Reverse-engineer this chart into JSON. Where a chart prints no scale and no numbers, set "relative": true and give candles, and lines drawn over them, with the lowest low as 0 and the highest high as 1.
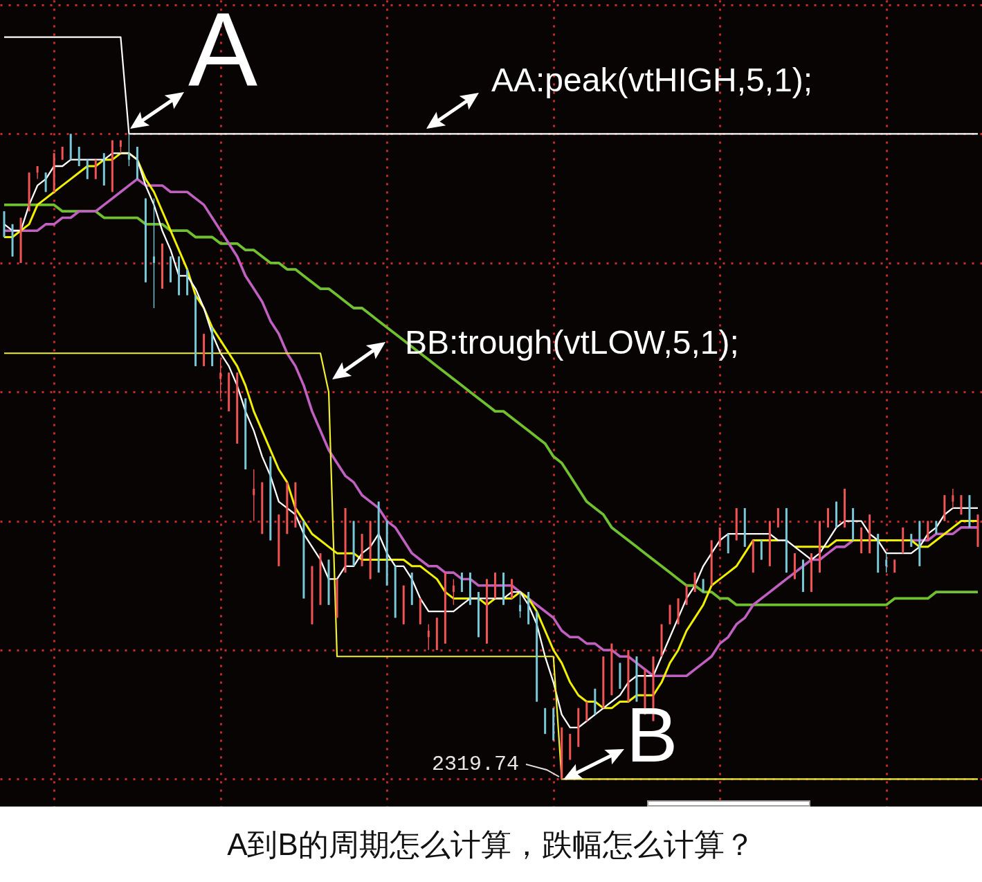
{
  "chart_data": {
    "type": "candlestick",
    "title": "A到B的周期怎么计算，跌幅怎么计算？",
    "relative": true,
    "grid": true,
    "annotations": [
      "A",
      "AA:peak(vtHIGH,5,1);",
      "BB:trough(vtLOW,5,1);",
      "B",
      "2319.74"
    ],
    "categories": [
      null,
      null,
      null,
      null,
      null,
      null,
      null,
      null,
      null,
      null,
      null,
      null,
      null,
      null,
      null,
      null,
      null,
      null,
      null,
      null,
      null,
      null,
      null,
      null,
      null,
      null,
      null,
      null,
      null,
      null,
      null,
      null,
      null,
      null,
      null,
      null,
      null,
      null,
      null,
      null,
      null,
      null,
      null,
      null,
      null,
      null,
      null,
      null,
      null,
      null,
      null,
      null,
      null,
      null,
      null,
      null,
      null,
      null,
      null,
      null,
      null,
      null,
      null,
      null,
      null,
      null,
      null,
      null,
      null,
      null,
      null,
      null,
      null,
      null,
      null,
      null,
      null,
      null,
      null,
      null,
      null,
      null,
      null,
      null,
      null,
      null,
      null,
      null,
      null,
      null,
      null,
      null,
      null,
      null,
      null,
      null,
      null,
      null,
      null,
      null,
      null,
      null,
      null,
      null,
      null,
      null,
      null,
      null,
      null,
      null,
      null,
      null,
      null,
      null,
      null,
      null,
      null,
      null
    ],
    "ohlc": [
      [
        0.88,
        0.88,
        0.84,
        0.84
      ],
      [
        0.86,
        0.86,
        0.81,
        0.81
      ],
      [
        0.8,
        0.87,
        0.8,
        0.87
      ],
      [
        0.88,
        0.94,
        0.88,
        0.94
      ],
      [
        0.94,
        0.95,
        0.93,
        0.95
      ],
      [
        0.94,
        0.94,
        0.91,
        0.91
      ],
      [
        0.91,
        0.97,
        0.91,
        0.97
      ],
      [
        0.96,
        0.98,
        0.96,
        0.98
      ],
      [
        1.0,
        1.0,
        0.96,
        0.96
      ],
      [
        0.98,
        0.98,
        0.95,
        0.95
      ],
      [
        0.96,
        0.96,
        0.93,
        0.93
      ],
      [
        0.93,
        0.96,
        0.93,
        0.96
      ],
      [
        0.97,
        0.97,
        0.92,
        0.92
      ],
      [
        0.91,
        0.99,
        0.91,
        0.99
      ],
      [
        0.98,
        0.99,
        0.97,
        0.99
      ],
      [
        0.97,
        1.0,
        0.95,
        0.96
      ],
      [
        0.98,
        0.98,
        0.93,
        0.93
      ],
      [
        0.9,
        0.9,
        0.77,
        0.77
      ],
      [
        0.81,
        0.9,
        0.73,
        0.8
      ],
      [
        0.76,
        0.83,
        0.76,
        0.83
      ],
      [
        0.81,
        0.81,
        0.77,
        0.77
      ],
      [
        0.81,
        0.81,
        0.75,
        0.75
      ],
      [
        0.79,
        0.79,
        0.75,
        0.75
      ],
      [
        0.75,
        0.75,
        0.64,
        0.64
      ],
      [
        0.64,
        0.69,
        0.64,
        0.69
      ],
      [
        0.7,
        0.7,
        0.64,
        0.64
      ],
      [
        0.62,
        0.65,
        0.59,
        0.63
      ],
      [
        0.57,
        0.63,
        0.57,
        0.63
      ],
      [
        0.52,
        0.63,
        0.52,
        0.63
      ],
      [
        0.59,
        0.59,
        0.48,
        0.48
      ],
      [
        0.44,
        0.48,
        0.4,
        0.45
      ],
      [
        0.38,
        0.46,
        0.38,
        0.46
      ],
      [
        0.5,
        0.5,
        0.37,
        0.37
      ],
      [
        0.33,
        0.41,
        0.33,
        0.41
      ],
      [
        0.38,
        0.46,
        0.38,
        0.46
      ],
      [
        0.39,
        0.46,
        0.39,
        0.46
      ],
      [
        0.4,
        0.4,
        0.28,
        0.28
      ],
      [
        0.24,
        0.33,
        0.24,
        0.33
      ],
      [
        0.27,
        0.35,
        0.27,
        0.35
      ],
      [
        0.34,
        0.34,
        0.27,
        0.27
      ],
      [
        0.25,
        0.31,
        0.25,
        0.31
      ],
      [
        0.32,
        0.42,
        0.32,
        0.42
      ],
      [
        0.4,
        0.4,
        0.33,
        0.33
      ],
      [
        0.33,
        0.38,
        0.33,
        0.38
      ],
      [
        0.31,
        0.4,
        0.31,
        0.4
      ],
      [
        0.43,
        0.43,
        0.32,
        0.32
      ],
      [
        0.4,
        0.4,
        0.3,
        0.3
      ],
      [
        0.33,
        0.33,
        0.25,
        0.25
      ],
      [
        0.24,
        0.3,
        0.24,
        0.3
      ],
      [
        0.32,
        0.32,
        0.27,
        0.27
      ],
      [
        0.24,
        0.28,
        0.24,
        0.28
      ],
      [
        0.22,
        0.24,
        0.2,
        0.23
      ],
      [
        0.2,
        0.25,
        0.2,
        0.25
      ],
      [
        0.21,
        0.32,
        0.21,
        0.32
      ],
      [
        0.29,
        0.31,
        0.27,
        0.3
      ],
      [
        0.32,
        0.32,
        0.29,
        0.29
      ],
      [
        0.32,
        0.32,
        0.27,
        0.27
      ],
      [
        0.29,
        0.29,
        0.22,
        0.22
      ],
      [
        0.21,
        0.31,
        0.21,
        0.31
      ],
      [
        0.28,
        0.32,
        0.28,
        0.32
      ],
      [
        0.32,
        0.32,
        0.27,
        0.27
      ],
      [
        0.28,
        0.31,
        0.28,
        0.31
      ],
      [
        0.27,
        0.29,
        0.25,
        0.26
      ],
      [
        0.29,
        0.29,
        0.24,
        0.24
      ],
      [
        0.26,
        0.26,
        0.12,
        0.12
      ],
      [
        0.11,
        0.11,
        0.07,
        0.07
      ],
      [
        0.11,
        0.11,
        0.06,
        0.06
      ],
      [
        0.0,
        0.08,
        0.0,
        0.08
      ],
      [
        0.03,
        0.07,
        0.03,
        0.07
      ],
      [
        0.05,
        0.11,
        0.05,
        0.11
      ],
      [
        0.09,
        0.12,
        0.09,
        0.12
      ],
      [
        0.14,
        0.14,
        0.1,
        0.1
      ],
      [
        0.11,
        0.19,
        0.11,
        0.19
      ],
      [
        0.13,
        0.21,
        0.13,
        0.21
      ],
      [
        0.18,
        0.18,
        0.14,
        0.14
      ],
      [
        0.12,
        0.2,
        0.12,
        0.2
      ],
      [
        0.19,
        0.19,
        0.12,
        0.12
      ],
      [
        0.1,
        0.17,
        0.1,
        0.17
      ],
      [
        0.09,
        0.19,
        0.09,
        0.19
      ],
      [
        0.19,
        0.24,
        0.19,
        0.24
      ],
      [
        0.24,
        0.27,
        0.24,
        0.27
      ],
      [
        0.24,
        0.28,
        0.24,
        0.28
      ],
      [
        0.27,
        0.3,
        0.27,
        0.3
      ],
      [
        0.29,
        0.32,
        0.29,
        0.32
      ],
      [
        0.31,
        0.31,
        0.29,
        0.29
      ],
      [
        0.3,
        0.37,
        0.3,
        0.37
      ],
      [
        0.36,
        0.39,
        0.36,
        0.39
      ],
      [
        0.38,
        0.38,
        0.35,
        0.35
      ],
      [
        0.37,
        0.42,
        0.37,
        0.42
      ],
      [
        0.42,
        0.42,
        0.36,
        0.36
      ],
      [
        0.32,
        0.37,
        0.32,
        0.37
      ],
      [
        0.37,
        0.37,
        0.34,
        0.34
      ],
      [
        0.33,
        0.4,
        0.33,
        0.4
      ],
      [
        0.39,
        0.42,
        0.39,
        0.42
      ],
      [
        0.42,
        0.42,
        0.32,
        0.32
      ],
      [
        0.31,
        0.35,
        0.31,
        0.35
      ],
      [
        0.34,
        0.34,
        0.29,
        0.29
      ],
      [
        0.29,
        0.35,
        0.29,
        0.35
      ],
      [
        0.32,
        0.4,
        0.32,
        0.4
      ],
      [
        0.39,
        0.42,
        0.39,
        0.42
      ],
      [
        0.43,
        0.43,
        0.39,
        0.39
      ],
      [
        0.39,
        0.45,
        0.39,
        0.45
      ],
      [
        0.42,
        0.42,
        0.37,
        0.37
      ],
      [
        0.35,
        0.39,
        0.35,
        0.39
      ],
      [
        0.35,
        0.41,
        0.35,
        0.41
      ],
      [
        0.38,
        0.38,
        0.32,
        0.32
      ],
      [
        0.34,
        0.35,
        0.32,
        0.33
      ],
      [
        0.32,
        0.34,
        0.32,
        0.34
      ],
      [
        0.35,
        0.39,
        0.35,
        0.39
      ],
      [
        0.38,
        0.38,
        0.36,
        0.36
      ],
      [
        0.4,
        0.4,
        0.33,
        0.33
      ],
      [
        0.37,
        0.4,
        0.37,
        0.4
      ],
      [
        0.4,
        0.4,
        0.38,
        0.38
      ],
      [
        0.4,
        0.44,
        0.4,
        0.44
      ],
      [
        0.43,
        0.45,
        0.42,
        0.44
      ],
      [
        0.41,
        0.44,
        0.41,
        0.44
      ],
      [
        0.44,
        0.44,
        0.39,
        0.39
      ],
      [
        0.36,
        0.41,
        0.36,
        0.41
      ]
    ],
    "colors": [
      "#78c8d8",
      "#78c8d8",
      "#f05454",
      "#f05454",
      "#f05454",
      "#78c8d8",
      "#f05454",
      "#f05454",
      "#78c8d8",
      "#78c8d8",
      "#78c8d8",
      "#f05454",
      "#78c8d8",
      "#f05454",
      "#f05454",
      "#78c8d8",
      "#78c8d8",
      "#78c8d8",
      "#78c8d8",
      "#f05454",
      "#78c8d8",
      "#78c8d8",
      "#78c8d8",
      "#78c8d8",
      "#f05454",
      "#78c8d8",
      "#f05454",
      "#f05454",
      "#f05454",
      "#78c8d8",
      "#f05454",
      "#f05454",
      "#78c8d8",
      "#f05454",
      "#f05454",
      "#f05454",
      "#78c8d8",
      "#f05454",
      "#f05454",
      "#78c8d8",
      "#f05454",
      "#f05454",
      "#78c8d8",
      "#f05454",
      "#f05454",
      "#78c8d8",
      "#78c8d8",
      "#78c8d8",
      "#f05454",
      "#78c8d8",
      "#f05454",
      "#f05454",
      "#f05454",
      "#f05454",
      "#f05454",
      "#78c8d8",
      "#78c8d8",
      "#78c8d8",
      "#f05454",
      "#f05454",
      "#78c8d8",
      "#f05454",
      "#78c8d8",
      "#78c8d8",
      "#78c8d8",
      "#78c8d8",
      "#78c8d8",
      "#f05454",
      "#f05454",
      "#f05454",
      "#f05454",
      "#78c8d8",
      "#f05454",
      "#f05454",
      "#78c8d8",
      "#f05454",
      "#78c8d8",
      "#f05454",
      "#f05454",
      "#f05454",
      "#f05454",
      "#f05454",
      "#f05454",
      "#f05454",
      "#78c8d8",
      "#f05454",
      "#f05454",
      "#78c8d8",
      "#f05454",
      "#78c8d8",
      "#f05454",
      "#78c8d8",
      "#f05454",
      "#f05454",
      "#78c8d8",
      "#f05454",
      "#78c8d8",
      "#f05454",
      "#f05454",
      "#f05454",
      "#78c8d8",
      "#f05454",
      "#78c8d8",
      "#f05454",
      "#f05454",
      "#78c8d8",
      "#78c8d8",
      "#f05454",
      "#f05454",
      "#78c8d8",
      "#78c8d8",
      "#f05454",
      "#78c8d8",
      "#f05454",
      "#f05454",
      "#f05454",
      "#78c8d8",
      "#f05454"
    ],
    "series": [
      {
        "type": "line",
        "color": "#70c030",
        "values": [
          0.89,
          0.89,
          0.89,
          0.89,
          0.89,
          0.89,
          0.89,
          0.88,
          0.88,
          0.88,
          0.88,
          0.88,
          0.87,
          0.87,
          0.87,
          0.87,
          0.87,
          0.86,
          0.86,
          0.86,
          0.85,
          0.85,
          0.85,
          0.84,
          0.84,
          0.84,
          0.83,
          0.83,
          0.83,
          0.82,
          0.82,
          0.81,
          0.8,
          0.8,
          0.79,
          0.79,
          0.78,
          0.77,
          0.76,
          0.76,
          0.75,
          0.74,
          0.73,
          0.73,
          0.72,
          0.71,
          0.7,
          0.69,
          0.68,
          0.67,
          0.66,
          0.65,
          0.64,
          0.63,
          0.62,
          0.61,
          0.6,
          0.59,
          0.58,
          0.57,
          0.57,
          0.56,
          0.55,
          0.54,
          0.53,
          0.52,
          0.5,
          0.49,
          0.47,
          0.45,
          0.43,
          0.42,
          0.41,
          0.39,
          0.38,
          0.37,
          0.36,
          0.35,
          0.34,
          0.33,
          0.32,
          0.31,
          0.3,
          0.3,
          0.29,
          0.29,
          0.28,
          0.28,
          0.27,
          0.27,
          0.27,
          0.27,
          0.27,
          0.27,
          0.27,
          0.27,
          0.27,
          0.27,
          0.27,
          0.27,
          0.27,
          0.27,
          0.27,
          0.27,
          0.27,
          0.27,
          0.27,
          0.28,
          0.28,
          0.28,
          0.28,
          0.28,
          0.29,
          0.29,
          0.29,
          0.29,
          0.29,
          0.29
        ]
      },
      {
        "type": "line",
        "color": "#c060c0",
        "values": [
          0.85,
          0.85,
          0.85,
          0.85,
          0.85,
          0.86,
          0.86,
          0.87,
          0.87,
          0.88,
          0.88,
          0.88,
          0.89,
          0.9,
          0.91,
          0.92,
          0.93,
          0.92,
          0.92,
          0.92,
          0.91,
          0.91,
          0.91,
          0.9,
          0.89,
          0.87,
          0.85,
          0.83,
          0.81,
          0.78,
          0.76,
          0.74,
          0.71,
          0.69,
          0.66,
          0.64,
          0.61,
          0.57,
          0.54,
          0.51,
          0.49,
          0.47,
          0.46,
          0.44,
          0.43,
          0.42,
          0.4,
          0.39,
          0.37,
          0.35,
          0.34,
          0.33,
          0.33,
          0.32,
          0.32,
          0.31,
          0.31,
          0.3,
          0.3,
          0.3,
          0.3,
          0.3,
          0.29,
          0.28,
          0.27,
          0.26,
          0.25,
          0.23,
          0.22,
          0.22,
          0.21,
          0.21,
          0.2,
          0.2,
          0.19,
          0.19,
          0.18,
          0.17,
          0.16,
          0.16,
          0.16,
          0.16,
          0.16,
          0.17,
          0.18,
          0.19,
          0.21,
          0.22,
          0.24,
          0.25,
          0.27,
          0.28,
          0.29,
          0.3,
          0.31,
          0.32,
          0.33,
          0.34,
          0.34,
          0.35,
          0.36,
          0.36,
          0.37,
          null,
          null,
          null,
          null,
          null,
          null,
          0.37,
          0.37,
          0.37,
          0.38,
          0.38,
          0.38,
          0.39,
          0.39,
          0.39
        ]
      },
      {
        "type": "line",
        "color": "#f0f000",
        "values": [
          0.84,
          0.84,
          0.85,
          0.86,
          0.89,
          0.9,
          0.91,
          0.92,
          0.93,
          0.94,
          0.95,
          0.95,
          0.96,
          0.96,
          0.97,
          0.97,
          0.96,
          0.93,
          0.91,
          0.88,
          0.85,
          0.82,
          0.79,
          0.75,
          0.73,
          0.7,
          0.68,
          0.66,
          0.64,
          0.61,
          0.57,
          0.54,
          0.51,
          0.48,
          0.46,
          0.42,
          0.4,
          0.38,
          0.37,
          0.36,
          0.35,
          0.35,
          0.35,
          0.34,
          0.34,
          0.34,
          0.34,
          0.34,
          0.34,
          0.33,
          0.33,
          0.32,
          0.31,
          0.29,
          0.28,
          0.28,
          0.28,
          0.28,
          0.27,
          0.28,
          0.28,
          0.28,
          0.29,
          0.28,
          0.26,
          0.23,
          0.2,
          0.18,
          0.15,
          0.13,
          0.12,
          0.12,
          0.11,
          0.11,
          0.12,
          0.12,
          0.13,
          0.13,
          0.13,
          0.15,
          0.18,
          0.2,
          0.23,
          0.25,
          0.27,
          0.3,
          0.31,
          0.32,
          0.33,
          0.35,
          0.37,
          0.37,
          0.37,
          0.37,
          null,
          0.36,
          0.36,
          0.36,
          0.36,
          0.36,
          0.37,
          0.37,
          0.37,
          0.37,
          0.37,
          0.37,
          0.37,
          0.37,
          0.37,
          0.37,
          0.36,
          0.36,
          0.37,
          0.38,
          0.39,
          0.4,
          0.4,
          0.4
        ]
      },
      {
        "type": "line",
        "color": "#ffffff",
        "values": [
          0.86,
          0.85,
          0.85,
          0.89,
          0.92,
          0.93,
          0.95,
          0.95,
          0.96,
          0.96,
          0.96,
          0.96,
          0.96,
          0.97,
          0.97,
          0.97,
          0.96,
          0.92,
          0.89,
          0.85,
          0.82,
          0.78,
          0.78,
          0.76,
          0.73,
          0.69,
          0.66,
          0.64,
          0.61,
          0.57,
          0.54,
          0.5,
          0.47,
          0.43,
          0.42,
          0.41,
          0.38,
          0.36,
          0.34,
          0.31,
          0.31,
          0.33,
          0.33,
          0.35,
          0.36,
          0.38,
          0.35,
          0.33,
          0.33,
          0.31,
          0.28,
          0.26,
          0.26,
          0.26,
          0.26,
          0.27,
          0.28,
          0.28,
          0.28,
          0.28,
          0.28,
          0.29,
          0.29,
          0.27,
          0.24,
          0.19,
          0.15,
          0.1,
          0.08,
          0.08,
          0.09,
          0.1,
          0.11,
          0.12,
          0.13,
          0.15,
          0.16,
          0.16,
          0.16,
          0.19,
          0.22,
          0.25,
          0.28,
          0.3,
          0.33,
          0.35,
          0.37,
          0.38,
          0.38,
          0.38,
          0.38,
          0.38,
          0.38,
          0.37,
          0.37,
          0.36,
          0.35,
          0.34,
          0.35,
          0.37,
          0.39,
          0.4,
          0.4,
          0.4,
          0.38,
          0.37,
          0.35,
          0.35,
          0.35,
          0.35,
          0.36,
          0.38,
          0.39,
          0.41,
          0.42,
          0.42,
          0.42,
          0.42
        ]
      },
      {
        "type": "line",
        "color": "#ffffff",
        "values": [
          1.15,
          1.15,
          1.15,
          1.15,
          1.15,
          1.15,
          1.15,
          1.15,
          1.15,
          1.15,
          1.15,
          1.15,
          1.15,
          1.15,
          1.15,
          1.0,
          1.0,
          1.0,
          1.0,
          1.0,
          1.0,
          1.0,
          1.0,
          1.0,
          1.0,
          1.0,
          1.0,
          1.0,
          1.0,
          1.0,
          1.0,
          1.0,
          1.0,
          1.0,
          1.0,
          1.0,
          1.0,
          1.0,
          1.0,
          1.0,
          1.0,
          1.0,
          1.0,
          1.0,
          1.0,
          1.0,
          1.0,
          1.0,
          1.0,
          1.0,
          1.0,
          1.0,
          1.0,
          1.0,
          1.0,
          1.0,
          1.0,
          1.0,
          1.0,
          1.0,
          1.0,
          1.0,
          1.0,
          1.0,
          1.0,
          1.0,
          1.0,
          1.0,
          1.0,
          1.0,
          1.0,
          1.0,
          1.0,
          1.0,
          1.0,
          1.0,
          1.0,
          1.0,
          1.0,
          1.0,
          1.0,
          1.0,
          1.0,
          1.0,
          1.0,
          1.0,
          1.0,
          1.0,
          1.0,
          1.0,
          1.0,
          1.0,
          1.0,
          1.0,
          1.0,
          1.0,
          1.0,
          1.0,
          1.0,
          1.0,
          1.0,
          1.0,
          1.0,
          1.0,
          1.0,
          1.0,
          1.0,
          1.0,
          1.0,
          1.0,
          1.0,
          1.0,
          1.0,
          1.0,
          1.0,
          1.0,
          1.0,
          1.0
        ]
      },
      {
        "type": "line",
        "color": "#f0f030",
        "values": [
          0.66,
          0.66,
          0.66,
          0.66,
          0.66,
          0.66,
          0.66,
          0.66,
          0.66,
          0.66,
          0.66,
          0.66,
          0.66,
          0.66,
          0.66,
          0.66,
          0.66,
          0.66,
          0.66,
          0.66,
          0.66,
          0.66,
          0.66,
          0.66,
          0.66,
          0.66,
          0.66,
          0.66,
          0.66,
          0.66,
          0.66,
          0.66,
          0.66,
          0.66,
          0.66,
          0.66,
          0.66,
          0.66,
          0.66,
          0.6,
          0.19,
          0.19,
          0.19,
          0.19,
          0.19,
          0.19,
          0.19,
          0.19,
          0.19,
          0.19,
          0.19,
          0.19,
          0.19,
          0.19,
          0.19,
          0.19,
          0.19,
          0.19,
          0.19,
          0.19,
          0.19,
          0.19,
          0.19,
          0.19,
          0.19,
          0.19,
          0.19,
          0.0,
          0.0,
          0.0,
          0.0,
          0.0,
          0.0,
          0.0,
          0.0,
          0.0,
          0.0,
          0.0,
          0.0,
          0.0,
          0.0,
          0.0,
          0.0,
          0.0,
          0.0,
          0.0,
          0.0,
          0.0,
          0.0,
          0.0,
          0.0,
          0.0,
          0.0,
          0.0,
          0.0,
          0.0,
          0.0,
          0.0,
          0.0,
          0.0,
          0.0,
          0.0,
          0.0,
          0.0,
          0.0,
          0.0,
          0.0,
          0.0,
          0.0,
          0.0,
          0.0,
          0.0,
          0.0,
          0.0,
          0.0,
          0.0,
          0.0,
          0.0
        ]
      }
    ]
  }
}
